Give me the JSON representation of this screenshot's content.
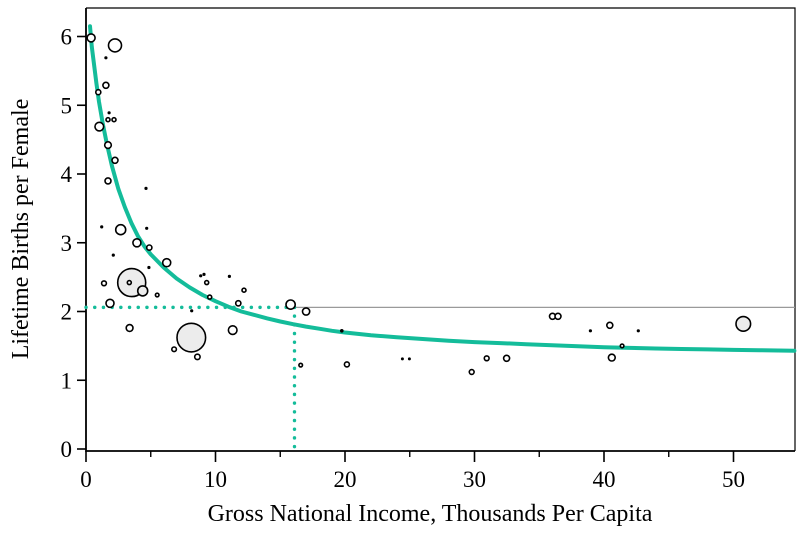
{
  "chart_data": {
    "type": "scatter",
    "title": "",
    "xlabel": "Gross National Income, Thousands Per Capita",
    "ylabel": "Lifetime Births per Female",
    "xlim": [
      0,
      54.75
    ],
    "ylim": [
      -0.03,
      6.41
    ],
    "x_ticks": [
      0,
      10,
      20,
      30,
      40,
      50
    ],
    "x_minor_ticks": [
      5,
      15,
      25,
      35,
      45
    ],
    "y_ticks": [
      0,
      1,
      2,
      3,
      4,
      5,
      6
    ],
    "grid": false,
    "legend": null,
    "colors": {
      "curve": "#14bc9a",
      "dotted_reference": "#14bc9a",
      "gray_reference_line": "#9a9a9a",
      "point_stroke": "#000000",
      "bubble_fill": "#ececec",
      "axis": "#000000"
    },
    "reference_lines": {
      "horizontal_dotted_y": 2.06,
      "vertical_dotted_x": 16.1,
      "gray_horizontal_y": 2.06,
      "gray_horizontal_x_start": 16.1
    },
    "trend_curve": [
      [
        0.31,
        6.15
      ],
      [
        0.45,
        5.85
      ],
      [
        0.6,
        5.62
      ],
      [
        0.8,
        5.32
      ],
      [
        1.0,
        5.05
      ],
      [
        1.3,
        4.73
      ],
      [
        1.6,
        4.45
      ],
      [
        2.0,
        4.12
      ],
      [
        2.5,
        3.78
      ],
      [
        3.0,
        3.52
      ],
      [
        3.5,
        3.29
      ],
      [
        4.0,
        3.1
      ],
      [
        4.5,
        2.95
      ],
      [
        5.0,
        2.83
      ],
      [
        6.0,
        2.64
      ],
      [
        7.0,
        2.48
      ],
      [
        8.0,
        2.35
      ],
      [
        9.0,
        2.24
      ],
      [
        10,
        2.15
      ],
      [
        11,
        2.07
      ],
      [
        12,
        2.0
      ],
      [
        13,
        1.95
      ],
      [
        14,
        1.9
      ],
      [
        15,
        1.855
      ],
      [
        16,
        1.815
      ],
      [
        17,
        1.78
      ],
      [
        18,
        1.75
      ],
      [
        19,
        1.72
      ],
      [
        20,
        1.695
      ],
      [
        22,
        1.655
      ],
      [
        24,
        1.625
      ],
      [
        26,
        1.6
      ],
      [
        28,
        1.575
      ],
      [
        30,
        1.555
      ],
      [
        32,
        1.54
      ],
      [
        34,
        1.525
      ],
      [
        36,
        1.51
      ],
      [
        38,
        1.495
      ],
      [
        40,
        1.48
      ],
      [
        42,
        1.47
      ],
      [
        44,
        1.462
      ],
      [
        46,
        1.455
      ],
      [
        48,
        1.448
      ],
      [
        50,
        1.442
      ],
      [
        52,
        1.437
      ],
      [
        54.7,
        1.43
      ]
    ],
    "points": [
      {
        "x": 3.53,
        "y": 2.42,
        "r": 14.0,
        "style": "gray"
      },
      {
        "x": 8.13,
        "y": 1.62,
        "r": 14.3,
        "style": "gray"
      },
      {
        "x": 50.76,
        "y": 1.82,
        "r": 7.3,
        "style": "gray"
      },
      {
        "x": 4.38,
        "y": 2.3,
        "r": 5.0,
        "style": "gray"
      },
      {
        "x": 0.39,
        "y": 5.98,
        "r": 4.0,
        "style": "ring"
      },
      {
        "x": 2.24,
        "y": 5.87,
        "r": 6.5,
        "style": "ring"
      },
      {
        "x": 1.54,
        "y": 5.69,
        "r": 1.6,
        "style": "dot"
      },
      {
        "x": 1.54,
        "y": 5.29,
        "r": 3.0,
        "style": "ring"
      },
      {
        "x": 0.95,
        "y": 5.19,
        "r": 2.5,
        "style": "ring"
      },
      {
        "x": 1.78,
        "y": 4.89,
        "r": 1.6,
        "style": "dot"
      },
      {
        "x": 1.7,
        "y": 4.79,
        "r": 2.0,
        "style": "ring"
      },
      {
        "x": 2.16,
        "y": 4.79,
        "r": 2.0,
        "style": "ring"
      },
      {
        "x": 1.03,
        "y": 4.69,
        "r": 4.3,
        "style": "ring"
      },
      {
        "x": 1.7,
        "y": 4.42,
        "r": 3.3,
        "style": "ring"
      },
      {
        "x": 2.24,
        "y": 4.2,
        "r": 3.0,
        "style": "ring"
      },
      {
        "x": 1.7,
        "y": 3.9,
        "r": 3.0,
        "style": "ring"
      },
      {
        "x": 4.63,
        "y": 3.79,
        "r": 1.6,
        "style": "dot"
      },
      {
        "x": 1.21,
        "y": 3.23,
        "r": 1.6,
        "style": "dot"
      },
      {
        "x": 2.68,
        "y": 3.19,
        "r": 5.0,
        "style": "ring"
      },
      {
        "x": 4.69,
        "y": 3.21,
        "r": 1.6,
        "style": "dot"
      },
      {
        "x": 3.93,
        "y": 3.0,
        "r": 4.0,
        "style": "ring"
      },
      {
        "x": 4.89,
        "y": 2.93,
        "r": 2.6,
        "style": "ring"
      },
      {
        "x": 2.11,
        "y": 2.82,
        "r": 1.6,
        "style": "dot"
      },
      {
        "x": 6.23,
        "y": 2.71,
        "r": 4.0,
        "style": "ring"
      },
      {
        "x": 4.86,
        "y": 2.64,
        "r": 1.6,
        "style": "dot"
      },
      {
        "x": 8.86,
        "y": 2.52,
        "r": 1.6,
        "style": "dot"
      },
      {
        "x": 9.11,
        "y": 2.54,
        "r": 1.6,
        "style": "dot"
      },
      {
        "x": 11.07,
        "y": 2.51,
        "r": 1.6,
        "style": "dot"
      },
      {
        "x": 9.32,
        "y": 2.42,
        "r": 2.0,
        "style": "ring"
      },
      {
        "x": 3.34,
        "y": 2.42,
        "r": 2.0,
        "style": "ring"
      },
      {
        "x": 1.39,
        "y": 2.41,
        "r": 2.4,
        "style": "ring"
      },
      {
        "x": 12.2,
        "y": 2.31,
        "r": 2.0,
        "style": "ring"
      },
      {
        "x": 9.55,
        "y": 2.21,
        "r": 2.0,
        "style": "ring"
      },
      {
        "x": 5.5,
        "y": 2.24,
        "r": 1.8,
        "style": "ring"
      },
      {
        "x": 1.85,
        "y": 2.12,
        "r": 4.0,
        "style": "ring"
      },
      {
        "x": 11.76,
        "y": 2.12,
        "r": 2.6,
        "style": "ring"
      },
      {
        "x": 15.8,
        "y": 2.1,
        "r": 4.6,
        "style": "ring"
      },
      {
        "x": 17.0,
        "y": 2.0,
        "r": 3.6,
        "style": "ring"
      },
      {
        "x": 8.16,
        "y": 2.01,
        "r": 1.6,
        "style": "dot"
      },
      {
        "x": 3.37,
        "y": 1.76,
        "r": 3.4,
        "style": "ring"
      },
      {
        "x": 6.8,
        "y": 1.45,
        "r": 2.3,
        "style": "ring"
      },
      {
        "x": 8.6,
        "y": 1.34,
        "r": 2.7,
        "style": "ring"
      },
      {
        "x": 11.33,
        "y": 1.73,
        "r": 4.3,
        "style": "ring"
      },
      {
        "x": 19.75,
        "y": 1.72,
        "r": 1.8,
        "style": "dot"
      },
      {
        "x": 16.58,
        "y": 1.22,
        "r": 1.8,
        "style": "ring"
      },
      {
        "x": 20.15,
        "y": 1.23,
        "r": 2.5,
        "style": "ring"
      },
      {
        "x": 24.43,
        "y": 1.31,
        "r": 1.5,
        "style": "dot"
      },
      {
        "x": 24.97,
        "y": 1.31,
        "r": 1.5,
        "style": "dot"
      },
      {
        "x": 29.78,
        "y": 1.12,
        "r": 2.4,
        "style": "ring"
      },
      {
        "x": 30.94,
        "y": 1.32,
        "r": 2.4,
        "style": "ring"
      },
      {
        "x": 32.48,
        "y": 1.32,
        "r": 3.0,
        "style": "ring"
      },
      {
        "x": 36.02,
        "y": 1.93,
        "r": 3.0,
        "style": "ring"
      },
      {
        "x": 36.45,
        "y": 1.93,
        "r": 3.0,
        "style": "ring"
      },
      {
        "x": 38.95,
        "y": 1.72,
        "r": 1.6,
        "style": "dot"
      },
      {
        "x": 40.45,
        "y": 1.8,
        "r": 3.0,
        "style": "ring"
      },
      {
        "x": 42.65,
        "y": 1.72,
        "r": 1.6,
        "style": "dot"
      },
      {
        "x": 41.4,
        "y": 1.5,
        "r": 1.8,
        "style": "ring"
      },
      {
        "x": 40.6,
        "y": 1.33,
        "r": 3.4,
        "style": "ring"
      }
    ]
  }
}
